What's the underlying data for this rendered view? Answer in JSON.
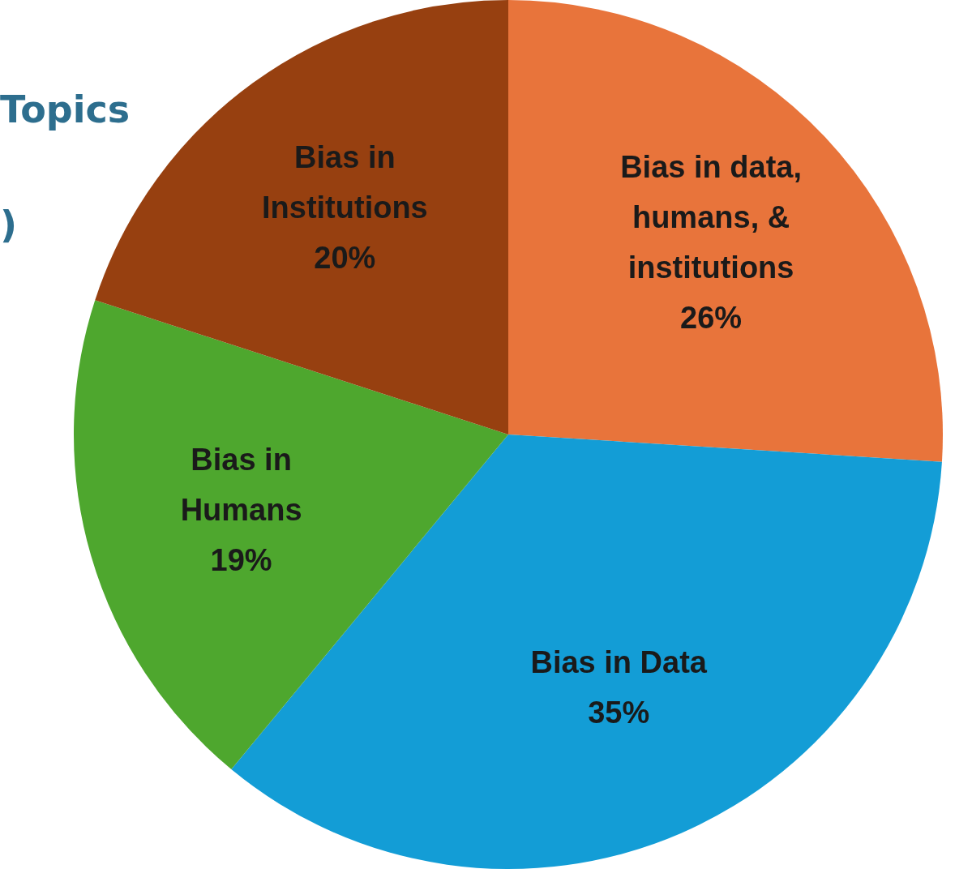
{
  "chart_data": {
    "type": "pie",
    "title": "Topics",
    "annotations": [
      ")"
    ],
    "categories": [
      "Bias in data, humans, & institutions",
      "Bias in Data",
      "Bias in Humans",
      "Bias in Institutions"
    ],
    "values": [
      26,
      35,
      19,
      20
    ],
    "value_labels": [
      "26%",
      "35%",
      "19%",
      "20%"
    ],
    "colors": [
      "#e8743b",
      "#139dd6",
      "#4ea72e",
      "#974010"
    ],
    "legend": false
  }
}
